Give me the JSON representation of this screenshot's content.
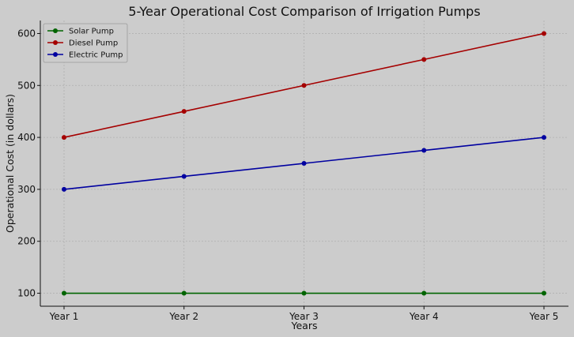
{
  "chart_data": {
    "type": "line",
    "title": "5-Year Operational Cost Comparison of Irrigation Pumps",
    "xlabel": "Years",
    "ylabel": "Operational Cost (in dollars)",
    "categories": [
      "Year 1",
      "Year 2",
      "Year 3",
      "Year 4",
      "Year 5"
    ],
    "yticks": [
      100,
      200,
      300,
      400,
      500,
      600
    ],
    "ylim": [
      75,
      625
    ],
    "grid": true,
    "legend_position": "top-left",
    "series": [
      {
        "name": "Solar Pump",
        "color": "#006400",
        "values": [
          100,
          100,
          100,
          100,
          100
        ]
      },
      {
        "name": "Diesel Pump",
        "color": "#a50000",
        "values": [
          400,
          450,
          500,
          550,
          600
        ]
      },
      {
        "name": "Electric Pump",
        "color": "#0000a0",
        "values": [
          300,
          325,
          350,
          375,
          400
        ]
      }
    ]
  }
}
